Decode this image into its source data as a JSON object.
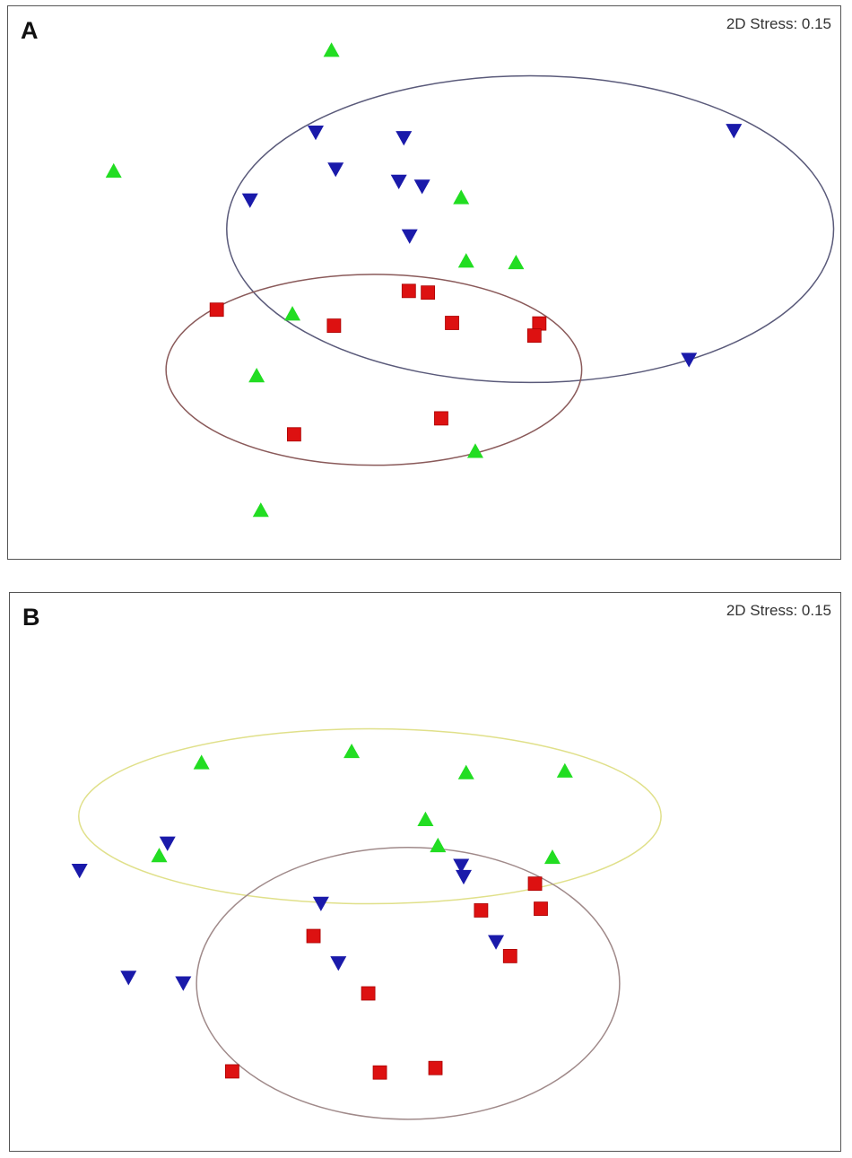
{
  "colors": {
    "triangle_up": "#22dd22",
    "triangle_down": "#1a1aaa",
    "square": "#dd1111"
  },
  "chart_data": [
    {
      "type": "scatter",
      "panel_label": "A",
      "stress_label": "2D Stress: 0.15",
      "xlim": [
        0,
        1
      ],
      "ylim": [
        0,
        1
      ],
      "series": [
        {
          "marker": "triangle-up",
          "color": "#22dd22",
          "points": [
            [
              0.389,
              0.92
            ],
            [
              0.127,
              0.701
            ],
            [
              0.545,
              0.653
            ],
            [
              0.551,
              0.538
            ],
            [
              0.611,
              0.535
            ],
            [
              0.342,
              0.442
            ],
            [
              0.299,
              0.33
            ],
            [
              0.562,
              0.193
            ],
            [
              0.304,
              0.086
            ]
          ]
        },
        {
          "marker": "triangle-down",
          "color": "#1a1aaa",
          "points": [
            [
              0.37,
              0.772
            ],
            [
              0.476,
              0.762
            ],
            [
              0.873,
              0.775
            ],
            [
              0.394,
              0.705
            ],
            [
              0.47,
              0.683
            ],
            [
              0.498,
              0.674
            ],
            [
              0.291,
              0.649
            ],
            [
              0.483,
              0.584
            ],
            [
              0.819,
              0.36
            ]
          ]
        },
        {
          "marker": "square",
          "color": "#dd1111",
          "points": [
            [
              0.482,
              0.484
            ],
            [
              0.505,
              0.481
            ],
            [
              0.251,
              0.45
            ],
            [
              0.392,
              0.421
            ],
            [
              0.534,
              0.426
            ],
            [
              0.639,
              0.425
            ],
            [
              0.633,
              0.403
            ],
            [
              0.521,
              0.253
            ],
            [
              0.344,
              0.224
            ]
          ]
        }
      ],
      "ellipses": [
        {
          "color": "#5a5a7a",
          "center": [
            0.628,
            0.596
          ],
          "radii": [
            0.365,
            0.278
          ]
        },
        {
          "color": "#8a5a5a",
          "center": [
            0.44,
            0.341
          ],
          "radii": [
            0.25,
            0.173
          ]
        }
      ]
    },
    {
      "type": "scatter",
      "panel_label": "B",
      "stress_label": "2D Stress: 0.15",
      "xlim": [
        0,
        1
      ],
      "ylim": [
        0,
        1
      ],
      "series": [
        {
          "marker": "triangle-up",
          "color": "#22dd22",
          "points": [
            [
              0.231,
              0.695
            ],
            [
              0.412,
              0.715
            ],
            [
              0.55,
              0.677
            ],
            [
              0.669,
              0.68
            ],
            [
              0.501,
              0.593
            ],
            [
              0.516,
              0.546
            ],
            [
              0.18,
              0.528
            ],
            [
              0.654,
              0.525
            ]
          ]
        },
        {
          "marker": "triangle-down",
          "color": "#1a1aaa",
          "points": [
            [
              0.19,
              0.551
            ],
            [
              0.084,
              0.502
            ],
            [
              0.544,
              0.511
            ],
            [
              0.547,
              0.491
            ],
            [
              0.375,
              0.443
            ],
            [
              0.586,
              0.374
            ],
            [
              0.396,
              0.336
            ],
            [
              0.143,
              0.31
            ],
            [
              0.209,
              0.3
            ]
          ]
        },
        {
          "marker": "square",
          "color": "#dd1111",
          "points": [
            [
              0.633,
              0.478
            ],
            [
              0.64,
              0.433
            ],
            [
              0.568,
              0.43
            ],
            [
              0.366,
              0.384
            ],
            [
              0.603,
              0.348
            ],
            [
              0.432,
              0.281
            ],
            [
              0.513,
              0.147
            ],
            [
              0.268,
              0.141
            ],
            [
              0.446,
              0.139
            ]
          ]
        }
      ],
      "ellipses": [
        {
          "color": "#e0e08a",
          "center": [
            0.434,
            0.599
          ],
          "radii": [
            0.351,
            0.157
          ]
        },
        {
          "color": "#a08a8a",
          "center": [
            0.48,
            0.299
          ],
          "radii": [
            0.255,
            0.244
          ]
        }
      ]
    }
  ]
}
